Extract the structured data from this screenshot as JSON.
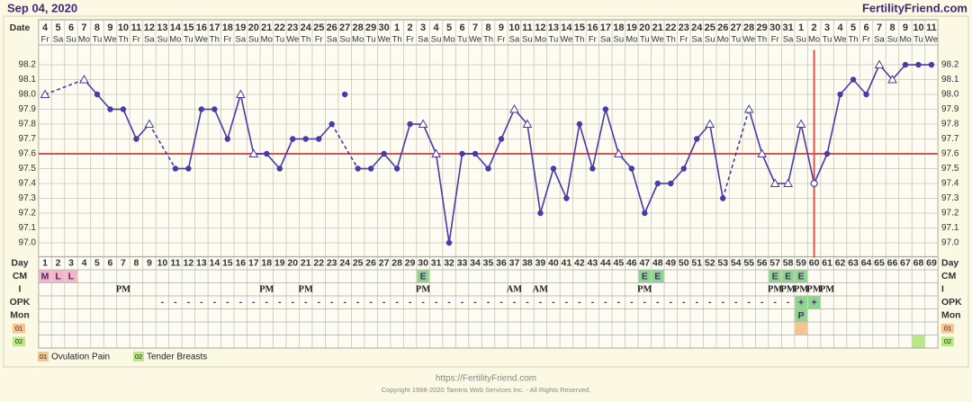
{
  "chart_data": {
    "type": "line",
    "title": "Sep 04, 2020",
    "brand": "FertilityFriend.com",
    "date_label": "Date",
    "day_label": "Day",
    "dates": [
      4,
      5,
      6,
      7,
      8,
      9,
      10,
      11,
      12,
      13,
      14,
      15,
      16,
      17,
      18,
      19,
      20,
      21,
      22,
      23,
      24,
      25,
      26,
      27,
      28,
      29,
      30,
      1,
      2,
      3,
      4,
      5,
      6,
      7,
      8,
      9,
      10,
      11,
      12,
      13,
      14,
      15,
      16,
      17,
      18,
      19,
      20,
      21,
      22,
      23,
      24,
      25,
      26,
      27,
      28,
      29,
      30,
      31,
      1,
      2,
      3,
      4,
      5,
      6,
      7,
      8,
      9,
      10,
      11
    ],
    "weekdays": [
      "Fr",
      "Sa",
      "Su",
      "Mo",
      "Tu",
      "We",
      "Th",
      "Fr",
      "Sa",
      "Su",
      "Mo",
      "Tu",
      "We",
      "Th",
      "Fr",
      "Sa",
      "Su",
      "Mo",
      "Tu",
      "We",
      "Th",
      "Fr",
      "Sa",
      "Su",
      "Mo",
      "Tu",
      "We",
      "Th",
      "Fr",
      "Sa",
      "Su",
      "Mo",
      "Tu",
      "We",
      "Th",
      "Fr",
      "Sa",
      "Su",
      "Mo",
      "Tu",
      "We",
      "Th",
      "Fr",
      "Sa",
      "Su",
      "Mo",
      "Tu",
      "We",
      "Th",
      "Fr",
      "Sa",
      "Su",
      "Mo",
      "Tu",
      "We",
      "Th",
      "Fr",
      "Sa",
      "Su",
      "Mo",
      "Tu",
      "We",
      "Th",
      "Fr",
      "Sa",
      "Su",
      "Mo",
      "Tu",
      "We"
    ],
    "days": [
      1,
      2,
      3,
      4,
      5,
      6,
      7,
      8,
      9,
      10,
      11,
      12,
      13,
      14,
      15,
      16,
      17,
      18,
      19,
      20,
      21,
      22,
      23,
      24,
      25,
      26,
      27,
      28,
      29,
      30,
      31,
      32,
      33,
      34,
      35,
      36,
      37,
      38,
      39,
      40,
      41,
      42,
      43,
      44,
      45,
      46,
      47,
      48,
      49,
      50,
      51,
      52,
      53,
      54,
      55,
      56,
      57,
      58,
      59,
      60,
      61,
      62,
      63,
      64,
      65,
      66,
      67,
      68,
      69
    ],
    "series": [
      {
        "color": "#4a3aa8",
        "values": [
          98.0,
          null,
          null,
          98.1,
          98.0,
          97.9,
          97.9,
          97.7,
          97.8,
          null,
          97.5,
          97.5,
          97.9,
          97.9,
          97.7,
          98.0,
          97.6,
          97.6,
          97.5,
          97.7,
          97.7,
          97.7,
          97.8,
          98.0,
          97.5,
          97.5,
          97.6,
          97.5,
          97.8,
          97.8,
          97.6,
          97.0,
          97.6,
          97.6,
          97.5,
          97.7,
          97.9,
          97.8,
          97.2,
          97.5,
          97.3,
          97.8,
          97.5,
          97.9,
          97.6,
          97.5,
          97.2,
          97.4,
          97.4,
          97.5,
          97.7,
          97.8,
          97.3,
          null,
          97.9,
          97.6,
          97.4,
          97.4,
          97.8,
          97.4,
          97.6,
          98.0,
          98.1,
          98.0,
          98.2,
          98.1,
          98.2,
          98.2,
          98.2
        ],
        "markers": [
          "triangle",
          null,
          null,
          "triangle",
          "dot",
          "dot",
          "dot",
          "dot",
          "triangle",
          null,
          "dot",
          "dot",
          "dot",
          "dot",
          "dot",
          "triangle",
          "triangle",
          "dot",
          "dot",
          "dot",
          "dot",
          "dot",
          "dot",
          "excluded",
          "dot",
          "dot",
          "dot",
          "dot",
          "dot",
          "triangle",
          "triangle",
          "dot",
          "dot",
          "dot",
          "dot",
          "dot",
          "triangle",
          "triangle",
          "dot",
          "dot",
          "dot",
          "dot",
          "dot",
          "dot",
          "triangle",
          "dot",
          "dot",
          "dot",
          "dot",
          "dot",
          "dot",
          "triangle",
          "dot",
          null,
          "triangle",
          "triangle",
          "triangle",
          "triangle",
          "triangle",
          "open",
          "dot",
          "dot",
          "dot",
          "dot",
          "triangle",
          "triangle",
          "dot",
          "dot",
          "dot"
        ]
      }
    ],
    "ylim": [
      96.9,
      98.3
    ],
    "yticks": [
      {
        "value": 97,
        "label": "97.0"
      },
      97.1,
      97.2,
      97.3,
      97.4,
      97.5,
      97.6,
      97.7,
      97.8,
      97.9,
      {
        "value": 98,
        "label": "98.0"
      },
      98.1,
      98.2
    ],
    "grid": true,
    "coverline": {
      "value": 97.6,
      "color": "#d9534f"
    },
    "ovulation_day": 60,
    "cm": {
      "label": "CM",
      "entries": [
        {
          "day": 1,
          "text": "M",
          "color": "#f2b5c9"
        },
        {
          "day": 2,
          "text": "L",
          "color": "#f2b5c9"
        },
        {
          "day": 3,
          "text": "L",
          "color": "#f2b5c9"
        },
        {
          "day": 30,
          "text": "E",
          "color": "#8fd48f"
        },
        {
          "day": 47,
          "text": "E",
          "color": "#8fd48f"
        },
        {
          "day": 48,
          "text": "E",
          "color": "#8fd48f"
        },
        {
          "day": 57,
          "text": "E",
          "color": "#8fd48f"
        },
        {
          "day": 58,
          "text": "E",
          "color": "#8fd48f"
        },
        {
          "day": 59,
          "text": "E",
          "color": "#8fd48f"
        }
      ]
    },
    "intercourse": {
      "label": "I",
      "entries": [
        {
          "day": 7,
          "text": "PM"
        },
        {
          "day": 18,
          "text": "PM"
        },
        {
          "day": 21,
          "text": "PM"
        },
        {
          "day": 30,
          "text": "PM"
        },
        {
          "day": 37,
          "text": "AM"
        },
        {
          "day": 39,
          "text": "AM"
        },
        {
          "day": 47,
          "text": "PM"
        },
        {
          "day": 57,
          "text": "PM"
        },
        {
          "day": 58,
          "text": "PM"
        },
        {
          "day": 59,
          "text": "PM"
        },
        {
          "day": 60,
          "text": "PM"
        },
        {
          "day": 61,
          "text": "PM"
        }
      ]
    },
    "opk": {
      "label": "OPK",
      "negative": {
        "from": 10,
        "to": 58,
        "text": "-"
      },
      "entries": [
        {
          "day": 59,
          "text": "+",
          "color": "#8fd48f"
        },
        {
          "day": 60,
          "text": "+",
          "color": "#8fd48f"
        }
      ]
    },
    "mon": {
      "label": "Mon",
      "entries": [
        {
          "day": 59,
          "text": "P",
          "color": "#8fd48f"
        }
      ]
    },
    "symptoms": [
      {
        "code": "01",
        "label": "Ovulation Pain",
        "color": "#f7c491",
        "days": [
          59
        ]
      },
      {
        "code": "02",
        "label": "Tender Breasts",
        "color": "#b9e985",
        "days": [
          68
        ]
      }
    ],
    "footer_url": "https://FertilityFriend.com",
    "copyright": "Copyright 1998-2020 Tamtris Web Services Inc. - All Rights Reserved."
  }
}
